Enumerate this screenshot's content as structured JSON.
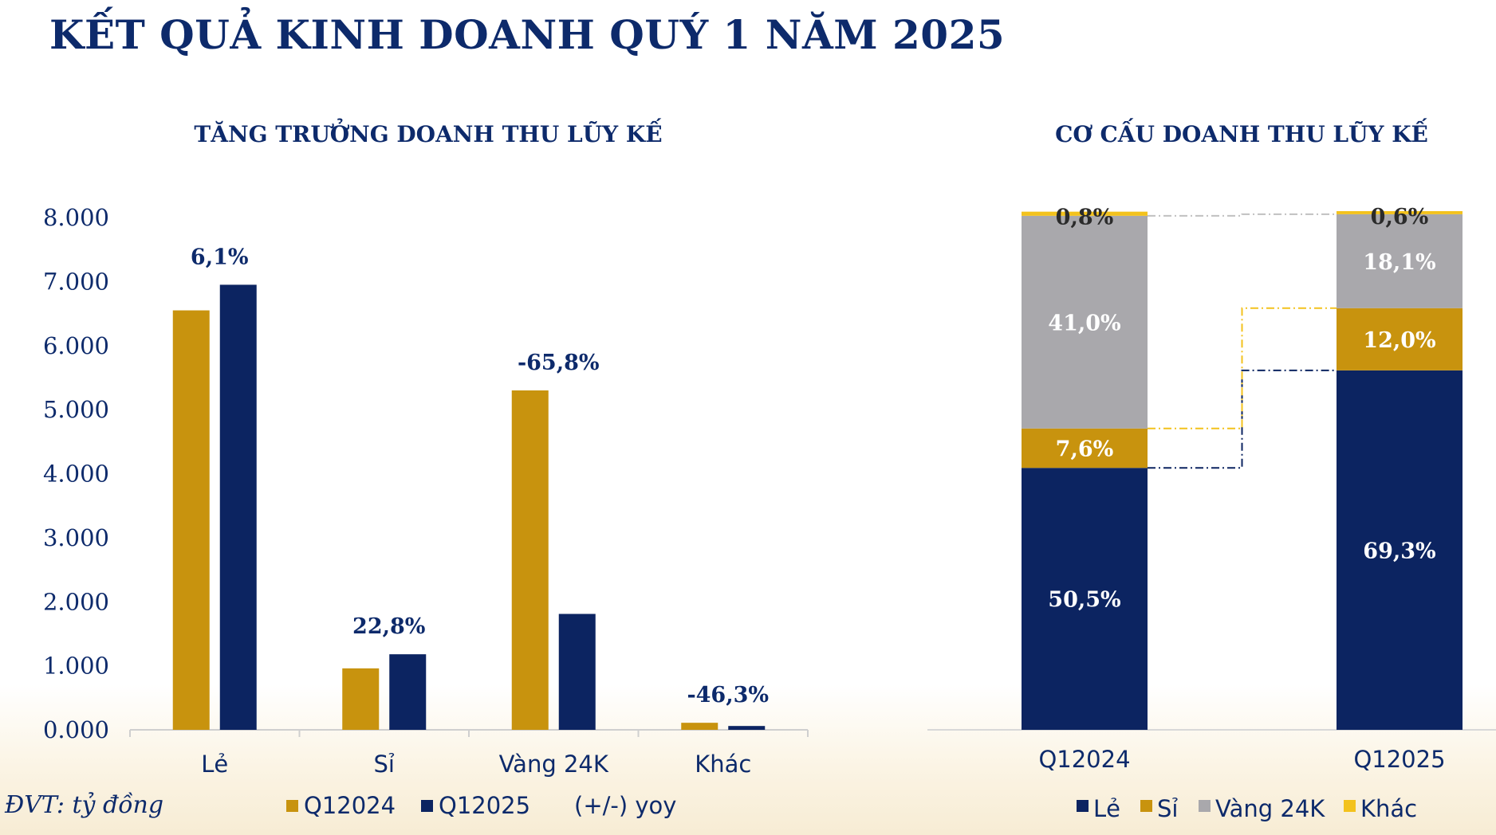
{
  "title": "KẾT QUẢ KINH DOANH QUÝ 1 NĂM 2025",
  "unit_note": "ĐVT: tỷ đồng",
  "colors": {
    "q12024": "#c8930e",
    "q12025": "#0c2461",
    "le": "#0c2461",
    "si": "#c8930e",
    "vang24k": "#a9a8ac",
    "khac": "#f3c21d",
    "text": "#0d2a6b"
  },
  "chart_data": [
    {
      "type": "bar",
      "title": "TĂNG TRƯỞNG DOANH THU LŨY KẾ",
      "categories": [
        "Lẻ",
        "Sỉ",
        "Vàng 24K",
        "Khác"
      ],
      "series": [
        {
          "name": "Q12024",
          "values": [
            6550,
            960,
            5300,
            110
          ]
        },
        {
          "name": "Q12025",
          "values": [
            6950,
            1180,
            1810,
            60
          ]
        }
      ],
      "yoy_labels": [
        "6,1%",
        "22,8%",
        "-65,8%",
        "-46,3%"
      ],
      "yoy_legend": "(+/-) yoy",
      "yticks": [
        "0.000",
        "1.000",
        "2.000",
        "3.000",
        "4.000",
        "5.000",
        "6.000",
        "7.000",
        "8.000"
      ],
      "ylim": [
        0,
        8000
      ],
      "xlabel": "",
      "ylabel": ""
    },
    {
      "type": "bar",
      "stacked": true,
      "title": "CƠ CẤU DOANH THU LŨY KẾ",
      "categories": [
        "Q12024",
        "Q12025"
      ],
      "series": [
        {
          "name": "Lẻ",
          "values": [
            50.5,
            69.3
          ],
          "labels": [
            "50,5%",
            "69,3%"
          ]
        },
        {
          "name": "Sỉ",
          "values": [
            7.6,
            12.0
          ],
          "labels": [
            "7,6%",
            "12,0%"
          ]
        },
        {
          "name": "Vàng 24K",
          "values": [
            41.0,
            18.1
          ],
          "labels": [
            "41,0%",
            "18,1%"
          ]
        },
        {
          "name": "Khác",
          "values": [
            0.8,
            0.6
          ],
          "labels": [
            "0,8%",
            "0,6%"
          ]
        }
      ],
      "ylim": [
        0,
        100
      ]
    }
  ]
}
